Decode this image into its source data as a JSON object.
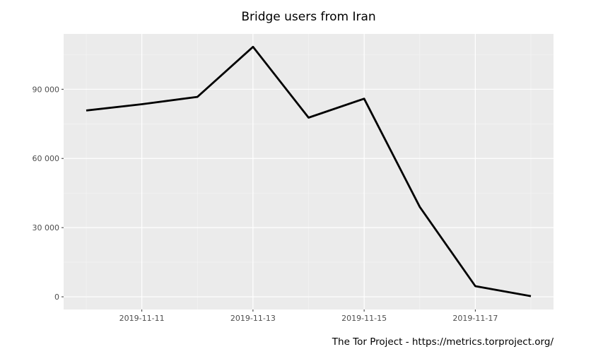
{
  "chart_data": {
    "type": "line",
    "title": "Bridge users from Iran",
    "caption": "The Tor Project - https://metrics.torproject.org/",
    "xlabel": "",
    "ylabel": "",
    "x": [
      "2019-11-10",
      "2019-11-11",
      "2019-11-12",
      "2019-11-13",
      "2019-11-14",
      "2019-11-15",
      "2019-11-16",
      "2019-11-17",
      "2019-11-18"
    ],
    "series": [
      {
        "values": [
          80800,
          83500,
          86700,
          108400,
          77700,
          85900,
          39000,
          4600,
          300
        ],
        "color": "#000000"
      }
    ],
    "x_ticks": [
      "2019-11-11",
      "2019-11-13",
      "2019-11-15",
      "2019-11-17"
    ],
    "y_ticks": [
      0,
      30000,
      60000,
      90000
    ],
    "y_tick_labels": [
      "0",
      "30 000",
      "60 000",
      "90 000"
    ],
    "ylim": [
      -5500,
      114000
    ],
    "xlim": [
      "2019-11-09T14:00",
      "2019-11-18T10:00"
    ],
    "grid": true,
    "panel_background": "#ebebeb"
  }
}
